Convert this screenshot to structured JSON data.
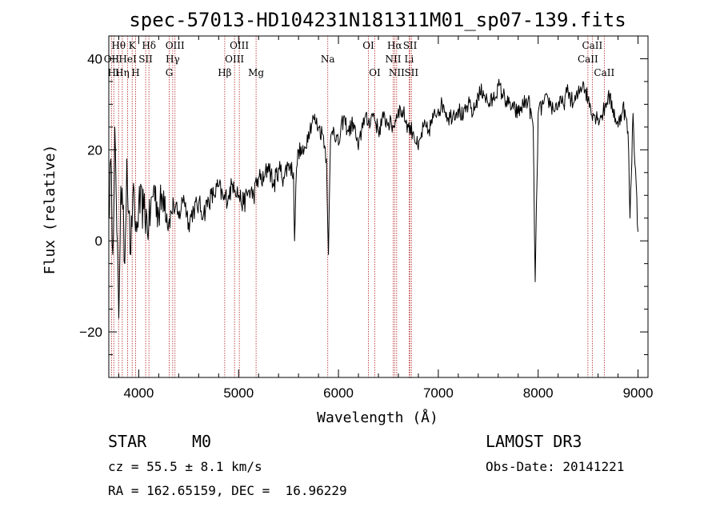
{
  "chart_data": {
    "type": "line",
    "title": "spec-57013-HD104231N181311M01_sp07-139.fits",
    "xlabel": "Wavelength (Å)",
    "ylabel": "Flux (relative)",
    "xlim": [
      3700,
      9100
    ],
    "ylim": [
      -30,
      45
    ],
    "x_ticks": [
      4000,
      5000,
      6000,
      7000,
      8000,
      9000
    ],
    "x_tick_labels": [
      "4000",
      "5000",
      "6000",
      "7000",
      "8000",
      "9000"
    ],
    "y_ticks": [
      -20,
      0,
      20,
      40
    ],
    "y_tick_labels": [
      "−20",
      "0",
      "20",
      "40"
    ],
    "series": [
      {
        "name": "flux",
        "x": [
          3700,
          3720,
          3740,
          3760,
          3780,
          3800,
          3820,
          3840,
          3860,
          3880,
          3900,
          3920,
          3940,
          3960,
          3980,
          4000,
          4050,
          4100,
          4150,
          4200,
          4250,
          4300,
          4350,
          4400,
          4450,
          4500,
          4550,
          4600,
          4650,
          4700,
          4750,
          4800,
          4850,
          4900,
          4950,
          5000,
          5050,
          5100,
          5150,
          5200,
          5250,
          5300,
          5350,
          5400,
          5450,
          5500,
          5550,
          5560,
          5580,
          5600,
          5650,
          5700,
          5750,
          5800,
          5850,
          5880,
          5900,
          5920,
          5950,
          6000,
          6050,
          6100,
          6150,
          6200,
          6250,
          6300,
          6350,
          6400,
          6450,
          6500,
          6550,
          6600,
          6650,
          6700,
          6750,
          6800,
          6850,
          6900,
          6950,
          7000,
          7050,
          7100,
          7150,
          7200,
          7250,
          7300,
          7350,
          7400,
          7450,
          7500,
          7550,
          7600,
          7650,
          7700,
          7750,
          7800,
          7850,
          7900,
          7950,
          7970,
          8000,
          8050,
          8100,
          8150,
          8200,
          8250,
          8300,
          8350,
          8400,
          8450,
          8500,
          8550,
          8600,
          8650,
          8700,
          8750,
          8800,
          8850,
          8900,
          8920,
          8950,
          9000
        ],
        "values": [
          5,
          18,
          -3,
          25,
          2,
          -17,
          12,
          7,
          -5,
          18,
          6,
          -3,
          10,
          5,
          2,
          8,
          7,
          3,
          12,
          6,
          11,
          4,
          8,
          5,
          10,
          4,
          7,
          8,
          6,
          9,
          10,
          12,
          9,
          10,
          13,
          10,
          8,
          11,
          10,
          14,
          13,
          17,
          12,
          16,
          14,
          17,
          15,
          0,
          16,
          20,
          19,
          24,
          27,
          25,
          23,
          18,
          -3,
          22,
          25,
          21,
          27,
          24,
          26,
          20,
          27,
          26,
          28,
          24,
          27,
          26,
          25,
          29,
          28,
          25,
          24,
          20,
          25,
          24,
          27,
          29,
          30,
          27,
          28,
          29,
          27,
          30,
          28,
          32,
          33,
          30,
          31,
          34,
          32,
          30,
          29,
          28,
          30,
          31,
          25,
          -9,
          28,
          30,
          31,
          29,
          30,
          30,
          33,
          30,
          32,
          35,
          31,
          28,
          27,
          28,
          32,
          29,
          25,
          30,
          24,
          5,
          28,
          2
        ]
      }
    ],
    "spectral_lines": [
      {
        "name": "Hθ",
        "wavelength": 3798,
        "row": 0
      },
      {
        "name": "K",
        "wavelength": 3934,
        "row": 0
      },
      {
        "name": "Hδ",
        "wavelength": 4102,
        "row": 0
      },
      {
        "name": "OIII",
        "wavelength": 4363,
        "row": 0
      },
      {
        "name": "OIII",
        "wavelength": 5007,
        "row": 0
      },
      {
        "name": "OI",
        "wavelength": 6300,
        "row": 0
      },
      {
        "name": "Hα",
        "wavelength": 6563,
        "row": 0
      },
      {
        "name": "SII",
        "wavelength": 6717,
        "row": 0
      },
      {
        "name": "CaII",
        "wavelength": 8542,
        "row": 0
      },
      {
        "name": "OII",
        "wavelength": 3727,
        "row": 1
      },
      {
        "name": "HeI",
        "wavelength": 3889,
        "row": 1
      },
      {
        "name": "SII",
        "wavelength": 4069,
        "row": 1
      },
      {
        "name": "Hγ",
        "wavelength": 4340,
        "row": 1
      },
      {
        "name": "OIII",
        "wavelength": 4959,
        "row": 1
      },
      {
        "name": "Na",
        "wavelength": 5893,
        "row": 1
      },
      {
        "name": "NII",
        "wavelength": 6548,
        "row": 1
      },
      {
        "name": "Li",
        "wavelength": 6708,
        "row": 1
      },
      {
        "name": "CaII",
        "wavelength": 8498,
        "row": 1
      },
      {
        "name": "Hι",
        "wavelength": 3750,
        "row": 2
      },
      {
        "name": "Hη",
        "wavelength": 3835,
        "row": 2
      },
      {
        "name": "H",
        "wavelength": 3968,
        "row": 2
      },
      {
        "name": "G",
        "wavelength": 4305,
        "row": 2
      },
      {
        "name": "Hβ",
        "wavelength": 4861,
        "row": 2
      },
      {
        "name": "Mg",
        "wavelength": 5175,
        "row": 2
      },
      {
        "name": "OI",
        "wavelength": 6364,
        "row": 2
      },
      {
        "name": "NII",
        "wavelength": 6583,
        "row": 2
      },
      {
        "name": "SII",
        "wavelength": 6731,
        "row": 2
      },
      {
        "name": "CaII",
        "wavelength": 8662,
        "row": 2
      }
    ],
    "colors": {
      "spectrum": "#000000",
      "lines": "#b22222",
      "axes": "#000000"
    }
  },
  "info": {
    "object_class": "STAR",
    "subclass": "M0",
    "survey": "LAMOST DR3",
    "redshift": "cz = 55.5 ± 8.1 km/s",
    "obs_date": "Obs-Date: 20141221",
    "coords": "RA = 162.65159, DEC =  16.96229"
  }
}
